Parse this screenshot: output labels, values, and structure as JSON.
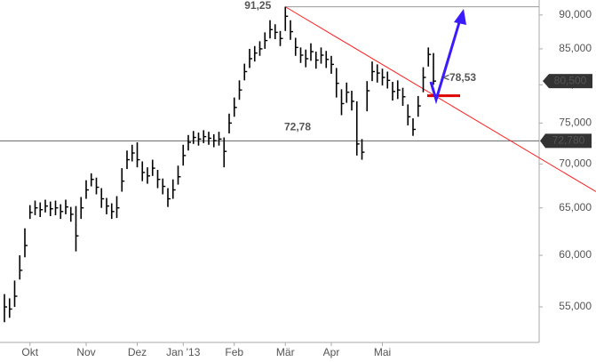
{
  "chart_data": {
    "type": "ohlc",
    "color": "#000000",
    "log_scale": true,
    "categories": [
      null,
      null,
      null,
      null,
      null,
      "Okt",
      null,
      null,
      null,
      null,
      null,
      null,
      null,
      null,
      null,
      null,
      "Nov",
      null,
      null,
      null,
      null,
      null,
      null,
      null,
      null,
      null,
      "Dez",
      null,
      null,
      null,
      null,
      null,
      null,
      null,
      null,
      "Jan '13",
      null,
      null,
      null,
      null,
      null,
      null,
      null,
      null,
      null,
      "Feb",
      null,
      null,
      null,
      null,
      null,
      null,
      null,
      null,
      null,
      "Mär",
      null,
      null,
      null,
      null,
      null,
      null,
      null,
      null,
      "Apr",
      null,
      null,
      null,
      null,
      null,
      null,
      null,
      null,
      null,
      "Mai",
      null,
      null,
      null,
      null,
      null,
      null,
      null,
      null,
      null,
      null
    ],
    "high": [
      56.2,
      55.8,
      57.5,
      60,
      62.8,
      65.3,
      65.8,
      65.6,
      65.9,
      65.7,
      65.8,
      65.4,
      65.9,
      65.1,
      65.2,
      66.2,
      68.1,
      68.9,
      68.4,
      67.2,
      66.1,
      65.5,
      66.3,
      69.5,
      71.6,
      72.3,
      72.6,
      70.3,
      69.6,
      70.5,
      69.3,
      68.3,
      67.2,
      68.2,
      69.8,
      72.3,
      73.5,
      74,
      73.8,
      74.1,
      73.9,
      73.6,
      73.9,
      73.2,
      76.2,
      78.3,
      80.6,
      82.9,
      85,
      85.4,
      86.1,
      87.4,
      89.2,
      88.6,
      87.6,
      91.25,
      89.2,
      86.6,
      85.2,
      84.9,
      85.8,
      84.6,
      85.2,
      84.7,
      84,
      82.3,
      79.4,
      80.3,
      79.2,
      77.8,
      73,
      80.5,
      83.2,
      82.8,
      82.2,
      81.8,
      80.4,
      80.6,
      79.6,
      77.4,
      75.6,
      78.5,
      82.4,
      85.2,
      84.4
    ],
    "low": [
      53.6,
      54,
      55,
      57.6,
      59.8,
      63.8,
      64.2,
      64,
      64.5,
      64.1,
      64.2,
      63.8,
      64.3,
      63.5,
      60.4,
      63.8,
      66,
      67.4,
      66.5,
      65,
      64.3,
      63.8,
      63.9,
      66.8,
      69.4,
      70.3,
      69.6,
      68,
      67.7,
      68.6,
      67.2,
      66.5,
      65.1,
      66,
      67.6,
      69.8,
      71.6,
      72.4,
      72.2,
      72.5,
      72.3,
      72,
      72.2,
      69.6,
      73.7,
      75.8,
      78,
      80.6,
      82.3,
      83.2,
      84,
      85,
      86.5,
      86.4,
      85.4,
      87.6,
      86.3,
      84,
      83,
      82.4,
      83.3,
      82.2,
      82.9,
      82.3,
      81.5,
      78.3,
      76,
      77.6,
      76.6,
      71,
      70.5,
      76.5,
      80.5,
      80.3,
      79.9,
      79.5,
      77.9,
      78.1,
      77.2,
      74.7,
      73.4,
      75.8,
      79,
      82.5,
      80
    ],
    "close": [
      55,
      54.8,
      56,
      58.5,
      61,
      64.5,
      65,
      64.8,
      65.2,
      64.9,
      65,
      64.6,
      65.1,
      64.3,
      62,
      65,
      67,
      68.2,
      67.3,
      66,
      65.2,
      64.6,
      65,
      68,
      70.5,
      71.3,
      70.5,
      69,
      68.6,
      69.5,
      68.2,
      67.4,
      66,
      67,
      68.5,
      71,
      72.6,
      73.2,
      73,
      73.3,
      73.1,
      72.8,
      73,
      71.5,
      75,
      77,
      79.3,
      81.8,
      83.6,
      84.4,
      85,
      86.2,
      87.8,
      87.4,
      86.5,
      89.8,
      87.5,
      85.2,
      84.1,
      83.6,
      84.6,
      83.4,
      84.1,
      83.5,
      82.8,
      80.2,
      77.5,
      79,
      77.8,
      72.4,
      71.4,
      79.2,
      81.8,
      81.6,
      81,
      80.6,
      79.1,
      79.3,
      78.4,
      75.8,
      74.2,
      77.2,
      81,
      84.2,
      80.5
    ],
    "ylim": [
      51.8,
      92.3
    ],
    "yticks": [
      {
        "value": 55,
        "label": "55,000"
      },
      {
        "value": 60,
        "label": "60,000"
      },
      {
        "value": 65,
        "label": "65,000"
      },
      {
        "value": 70,
        "label": "70,000"
      },
      {
        "value": 75,
        "label": "75,000"
      },
      {
        "value": 80,
        "label": "80,000"
      },
      {
        "value": 85,
        "label": "85,000"
      },
      {
        "value": 90,
        "label": "90,000"
      }
    ],
    "high_mark": {
      "value": 91.25,
      "label": "91,25",
      "color": "#999999"
    },
    "level": {
      "value": 72.78,
      "label": "72,78",
      "tag": "72,780",
      "color": "#666666"
    },
    "last_price": {
      "value": 80.5,
      "label": "80,500"
    },
    "support": {
      "value": 78.53,
      "label": "<78,53",
      "color": "#e00000"
    },
    "trendline": {
      "start_value": 91.25,
      "end_value": 66.8,
      "color": "#ff2020"
    }
  }
}
